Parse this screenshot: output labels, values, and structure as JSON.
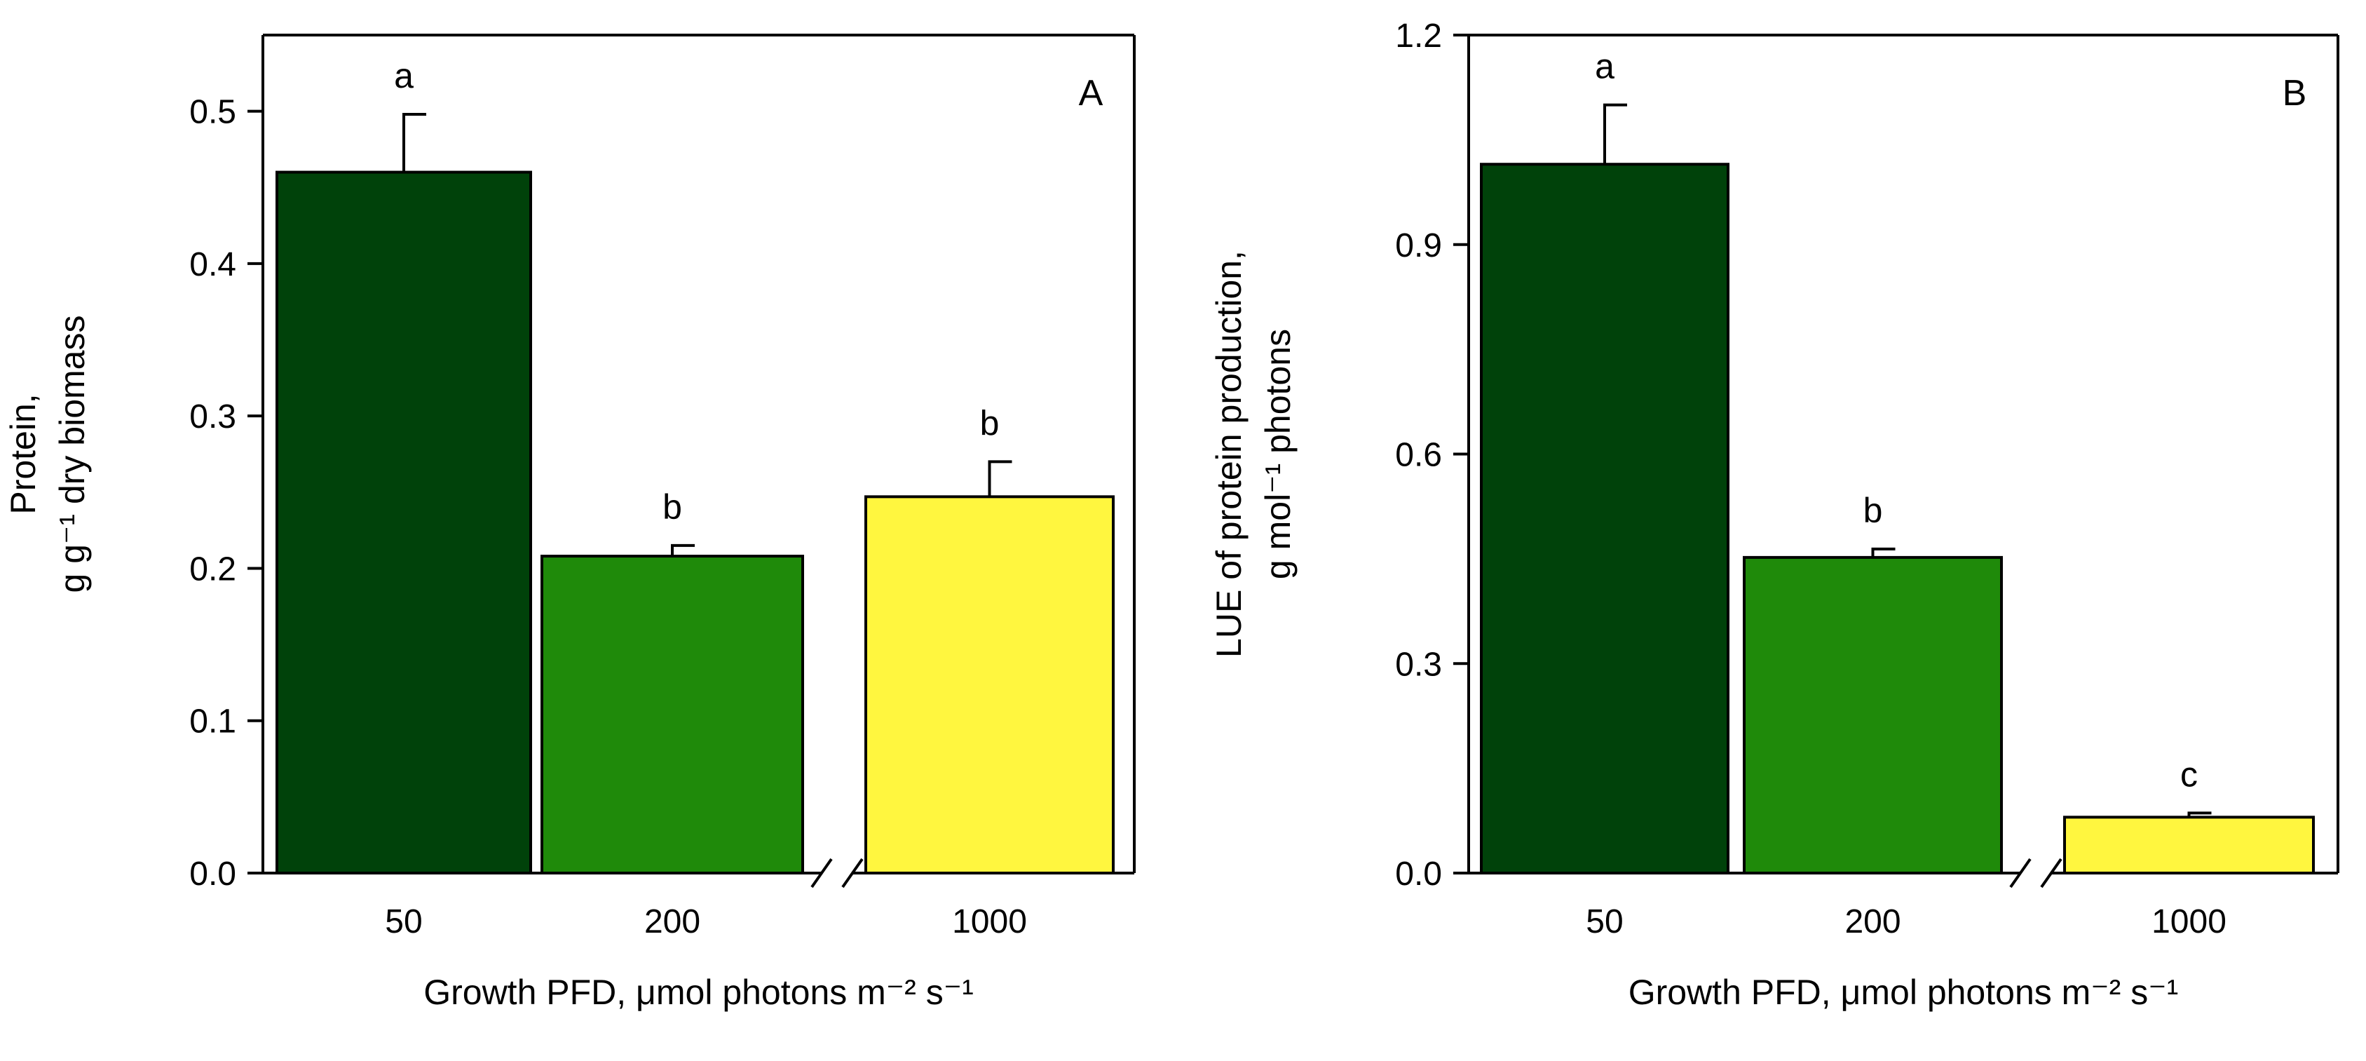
{
  "chart_data": [
    {
      "type": "bar",
      "panel_label": "A",
      "categories": [
        "50",
        "200",
        "1000"
      ],
      "values": [
        0.46,
        0.208,
        0.247
      ],
      "errors": [
        0.038,
        0.007,
        0.023
      ],
      "significance_letters": [
        "a",
        "b",
        "b"
      ],
      "colors": [
        "#00420a",
        "#1f8a0a",
        "#fff63f"
      ],
      "ylim": [
        0,
        0.55
      ],
      "yticks": [
        0.0,
        0.1,
        0.2,
        0.3,
        0.4,
        0.5
      ],
      "ytick_labels": [
        "0.0",
        "0.1",
        "0.2",
        "0.3",
        "0.4",
        "0.5"
      ],
      "ylabel_lines": [
        "Protein,",
        "g g⁻¹ dry biomass"
      ],
      "xlabel": "Growth PFD, μmol photons m⁻² s⁻¹",
      "axis_break": true
    },
    {
      "type": "bar",
      "panel_label": "B",
      "categories": [
        "50",
        "200",
        "1000"
      ],
      "values": [
        1.015,
        0.452,
        0.08
      ],
      "errors": [
        0.085,
        0.012,
        0.006
      ],
      "significance_letters": [
        "a",
        "b",
        "c"
      ],
      "colors": [
        "#00420a",
        "#1f8a0a",
        "#fff63f"
      ],
      "ylim": [
        0,
        1.2
      ],
      "yticks": [
        0.0,
        0.3,
        0.6,
        0.9,
        1.2
      ],
      "ytick_labels": [
        "0.0",
        "0.3",
        "0.6",
        "0.9",
        "1.2"
      ],
      "ylabel_lines": [
        "LUE of protein production,",
        "g mol⁻¹ photons"
      ],
      "xlabel": "Growth PFD, μmol photons m⁻² s⁻¹",
      "axis_break": true
    }
  ]
}
